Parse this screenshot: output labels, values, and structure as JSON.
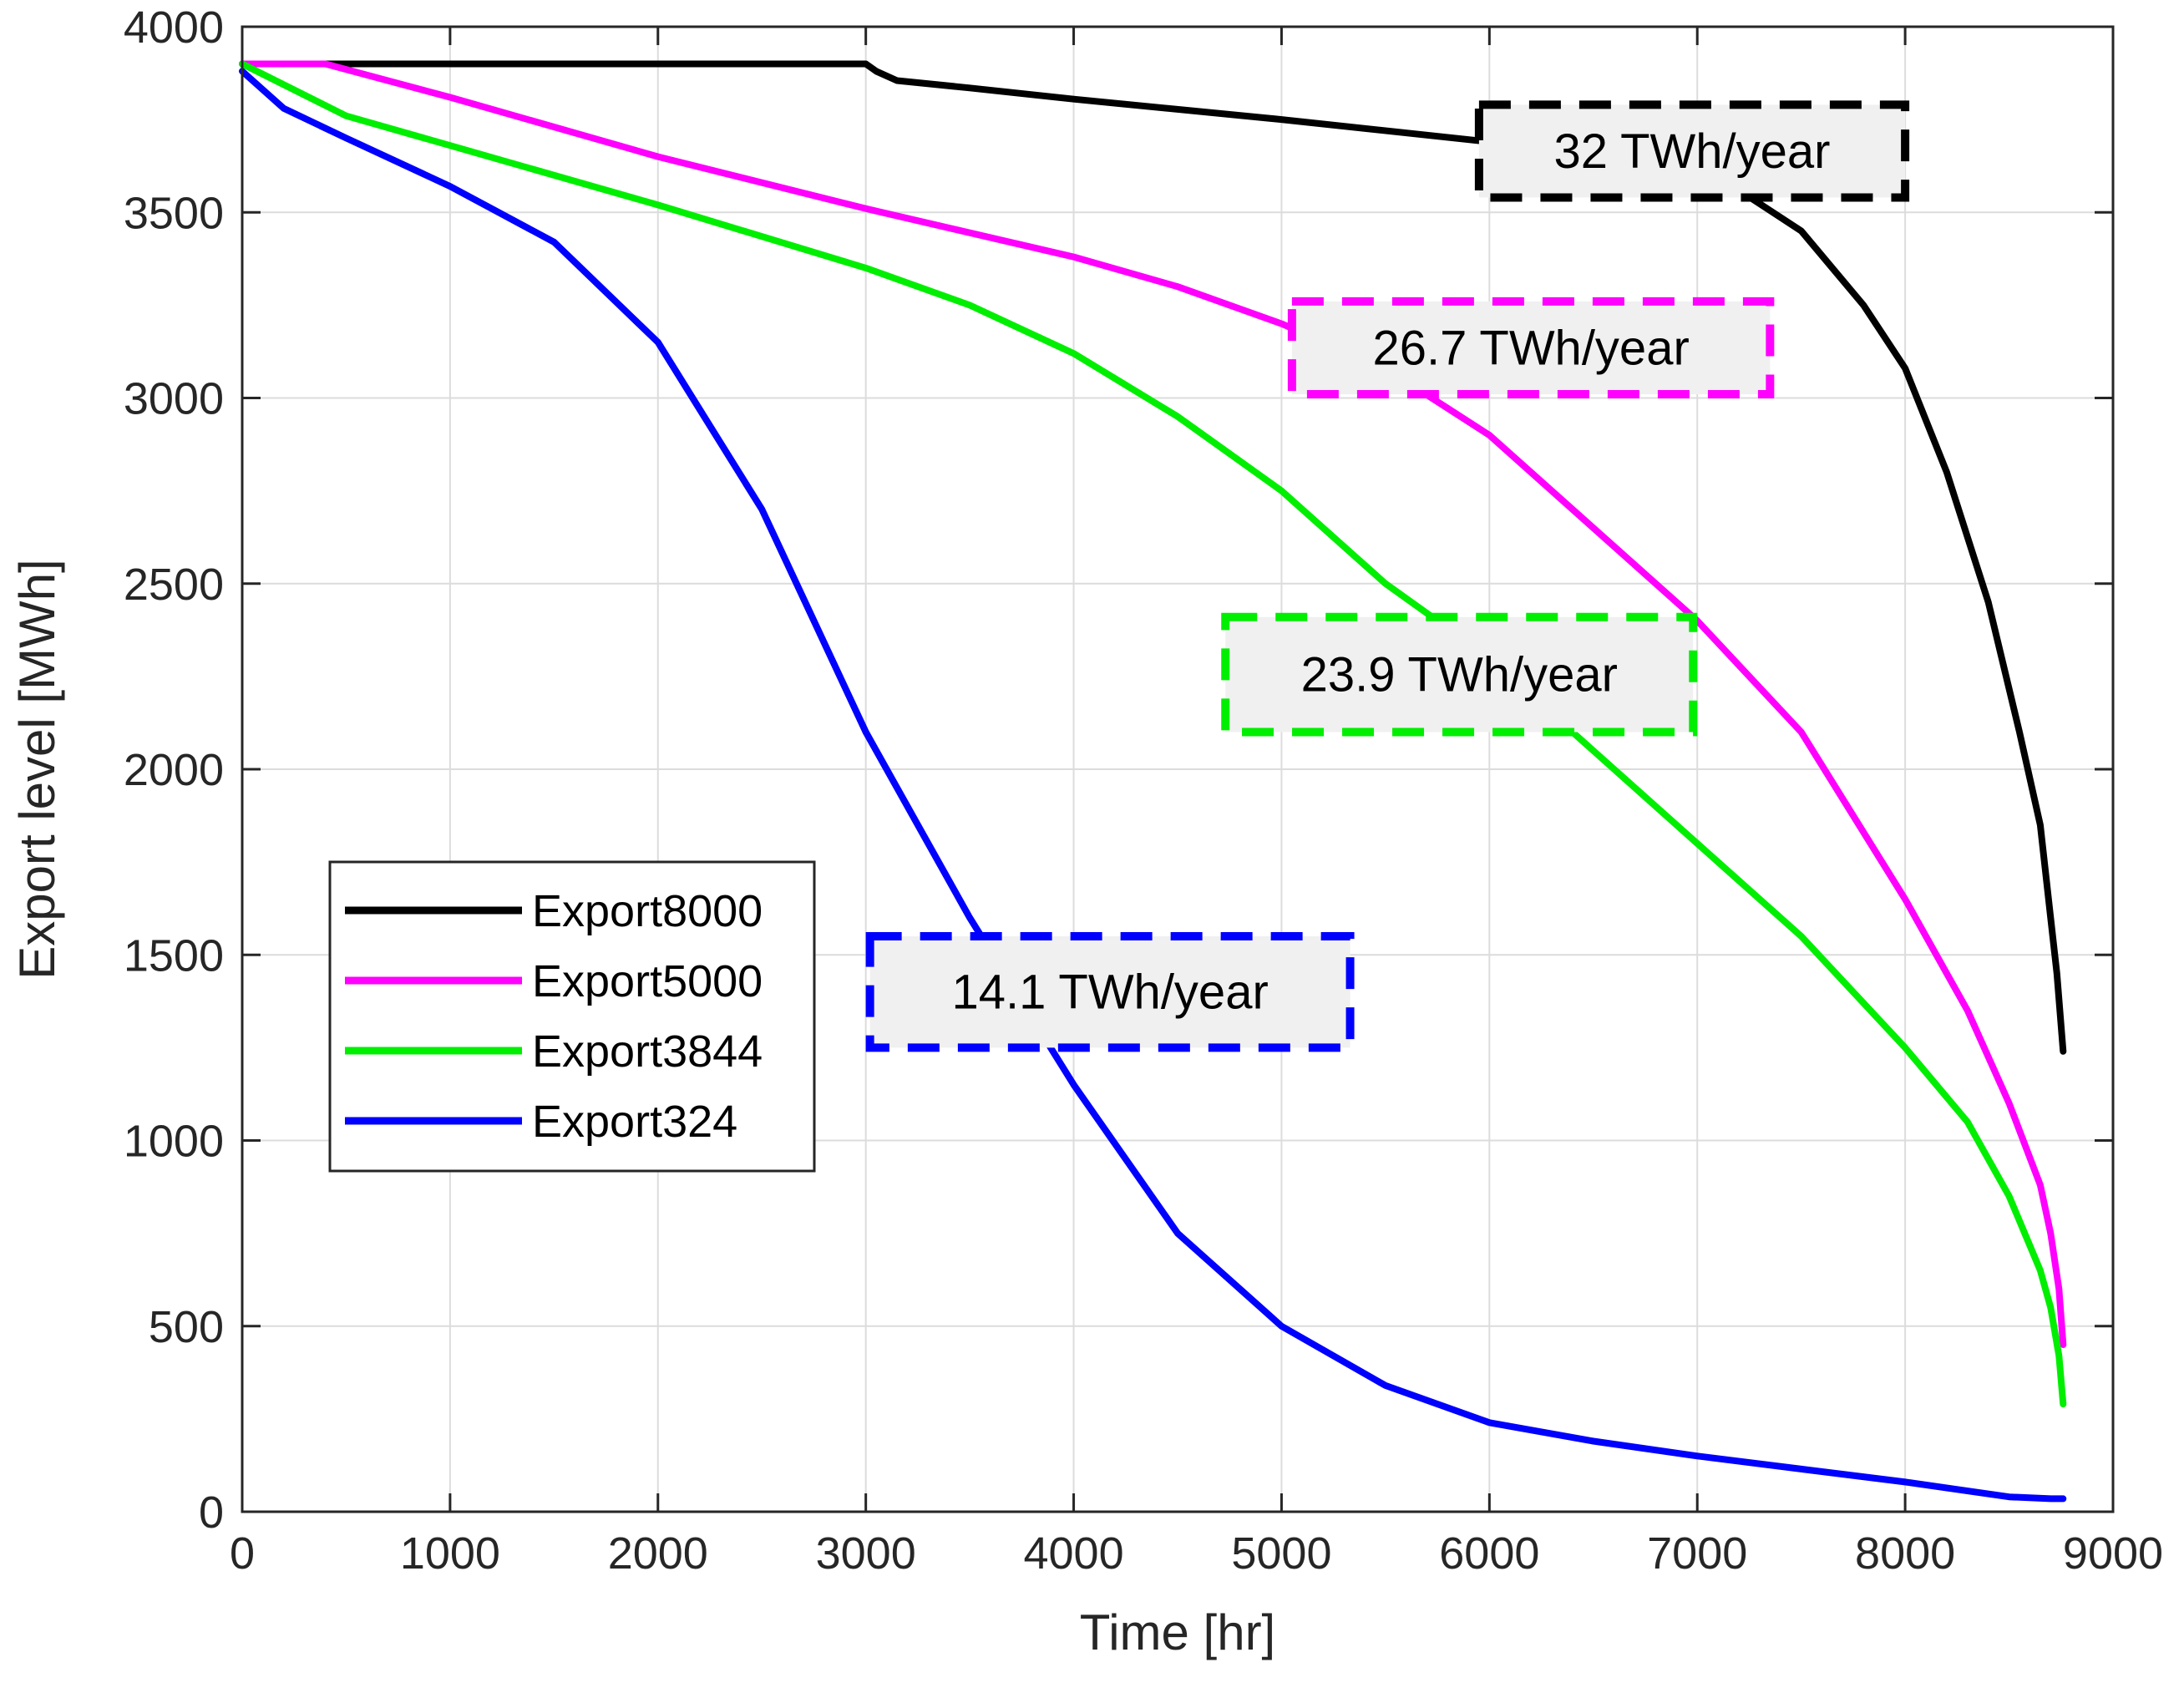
{
  "chart_data": {
    "type": "line",
    "title": "",
    "xlabel": "Time [hr]",
    "ylabel": "Export level [MWh]",
    "xlim": [
      0,
      9000
    ],
    "ylim": [
      0,
      4000
    ],
    "xticks": [
      0,
      1000,
      2000,
      3000,
      4000,
      5000,
      6000,
      7000,
      8000,
      9000
    ],
    "yticks": [
      0,
      500,
      1000,
      1500,
      2000,
      2500,
      3000,
      3500,
      4000
    ],
    "grid": true,
    "legend_placement": "center-left",
    "series": [
      {
        "name": "Export8000",
        "color": "#000000",
        "x": [
          0,
          500,
          1000,
          2000,
          3000,
          3050,
          3150,
          3500,
          4000,
          5000,
          6000,
          6500,
          7000,
          7200,
          7500,
          7800,
          8000,
          8200,
          8400,
          8550,
          8650,
          8700,
          8730,
          8760
        ],
        "y": [
          3900,
          3900,
          3900,
          3900,
          3900,
          3880,
          3855,
          3835,
          3805,
          3750,
          3690,
          3650,
          3600,
          3560,
          3450,
          3250,
          3080,
          2800,
          2450,
          2100,
          1850,
          1600,
          1450,
          1240
        ]
      },
      {
        "name": "Export5000",
        "color": "#ff00ff",
        "x": [
          0,
          400,
          1000,
          2000,
          3000,
          4000,
          4500,
          5000,
          5500,
          6000,
          6500,
          7000,
          7500,
          8000,
          8300,
          8500,
          8650,
          8700,
          8740,
          8760
        ],
        "y": [
          3900,
          3900,
          3810,
          3650,
          3510,
          3380,
          3300,
          3200,
          3080,
          2900,
          2650,
          2400,
          2100,
          1650,
          1350,
          1100,
          880,
          750,
          600,
          450
        ]
      },
      {
        "name": "Export3844",
        "color": "#00ee00",
        "x": [
          0,
          500,
          1000,
          2000,
          3000,
          3500,
          4000,
          4500,
          5000,
          5500,
          6000,
          6500,
          7000,
          7500,
          8000,
          8300,
          8500,
          8650,
          8700,
          8740,
          8760
        ],
        "y": [
          3900,
          3760,
          3680,
          3520,
          3350,
          3250,
          3120,
          2950,
          2750,
          2500,
          2300,
          2050,
          1800,
          1550,
          1250,
          1050,
          850,
          650,
          550,
          420,
          290
        ]
      },
      {
        "name": "Export324",
        "color": "#0000ff",
        "x": [
          0,
          200,
          500,
          1000,
          1500,
          2000,
          2500,
          3000,
          3500,
          4000,
          4500,
          5000,
          5500,
          6000,
          6500,
          7000,
          7500,
          8000,
          8500,
          8700,
          8760
        ],
        "y": [
          3880,
          3780,
          3700,
          3570,
          3420,
          3150,
          2700,
          2100,
          1600,
          1150,
          750,
          500,
          340,
          240,
          190,
          150,
          115,
          80,
          40,
          35,
          35
        ]
      }
    ],
    "annotations": [
      {
        "text": "32 TWh/year",
        "color": "#000000",
        "x0": 5950,
        "x1": 8000,
        "y0": 3540,
        "y1": 3790
      },
      {
        "text": "26.7 TWh/year",
        "color": "#ff00ff",
        "x0": 5050,
        "x1": 7350,
        "y0": 3010,
        "y1": 3260
      },
      {
        "text": "23.9 TWh/year",
        "color": "#00ee00",
        "x0": 4730,
        "x1": 6980,
        "y0": 2100,
        "y1": 2410
      },
      {
        "text": "14.1 TWh/year",
        "color": "#0000ff",
        "x0": 3020,
        "x1": 5330,
        "y0": 1250,
        "y1": 1550
      }
    ]
  }
}
